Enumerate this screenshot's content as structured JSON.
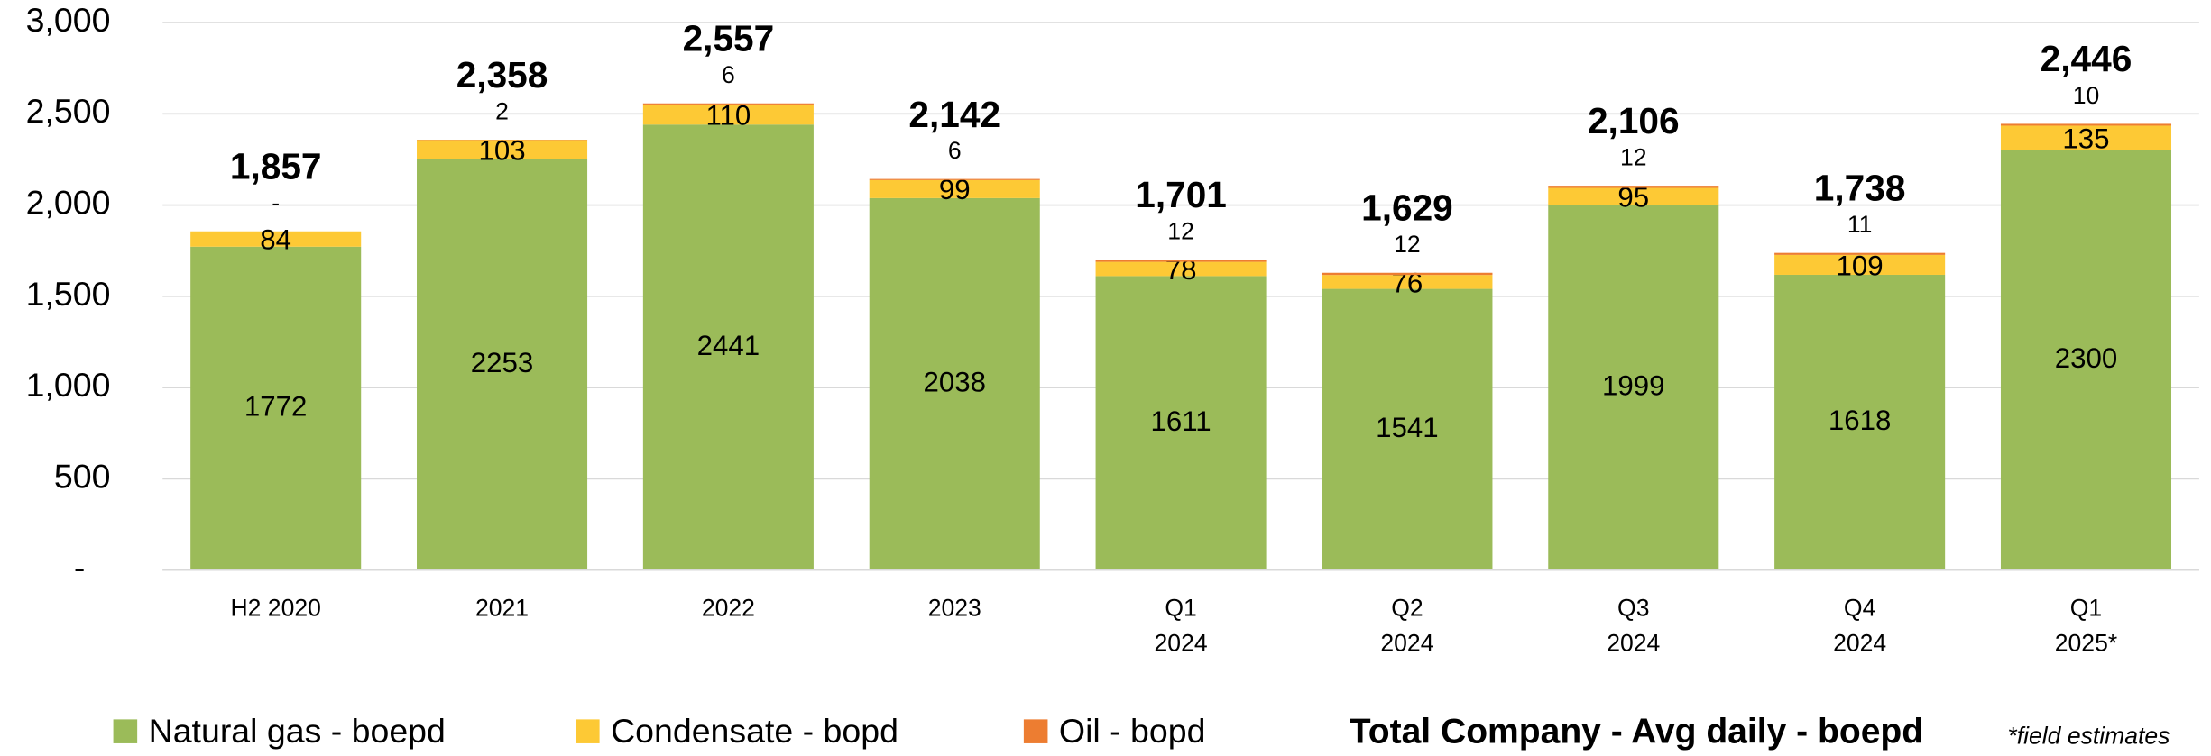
{
  "chart_data": {
    "type": "stacked_bar",
    "title": "Total Company - Avg daily - boepd",
    "note": "*field estimates",
    "categories": [
      [
        "H2 2020"
      ],
      [
        "2021"
      ],
      [
        "2022"
      ],
      [
        "2023"
      ],
      [
        "Q1",
        "2024"
      ],
      [
        "Q2",
        "2024"
      ],
      [
        "Q3",
        "2024"
      ],
      [
        "Q4",
        "2024"
      ],
      [
        "Q1",
        "2025*"
      ]
    ],
    "series": [
      {
        "name": "Natural gas - boepd",
        "color": "#9bbb59",
        "values": [
          1772,
          2253,
          2441,
          2038,
          1611,
          1541,
          1999,
          1618,
          2300
        ]
      },
      {
        "name": "Condensate - bopd",
        "color": "#fdc935",
        "values": [
          84,
          103,
          110,
          99,
          78,
          76,
          95,
          109,
          135
        ]
      },
      {
        "name": "Oil - bopd",
        "color": "#ed7d31",
        "values": [
          0,
          2,
          6,
          6,
          12,
          12,
          12,
          11,
          10
        ],
        "value_labels": [
          "-",
          "2",
          "6",
          "6",
          "12",
          "12",
          "12",
          "11",
          "10"
        ]
      }
    ],
    "totals": {
      "values": [
        1857,
        2358,
        2557,
        2142,
        1701,
        1629,
        2106,
        1738,
        2446
      ],
      "value_labels": [
        "1,857",
        "2,358",
        "2,557",
        "2,142",
        "1,701",
        "1,629",
        "2,106",
        "1,738",
        "2,446"
      ]
    },
    "ylim": [
      0,
      3000
    ],
    "yticks": [
      {
        "value": 0,
        "label": "-"
      },
      500,
      {
        "value": 1000,
        "label": "1,000"
      },
      {
        "value": 1500,
        "label": "1,500"
      },
      {
        "value": 2000,
        "label": "2,000"
      },
      {
        "value": 2500,
        "label": "2,500"
      },
      {
        "value": 3000,
        "label": "3,000"
      }
    ],
    "grid": true
  }
}
